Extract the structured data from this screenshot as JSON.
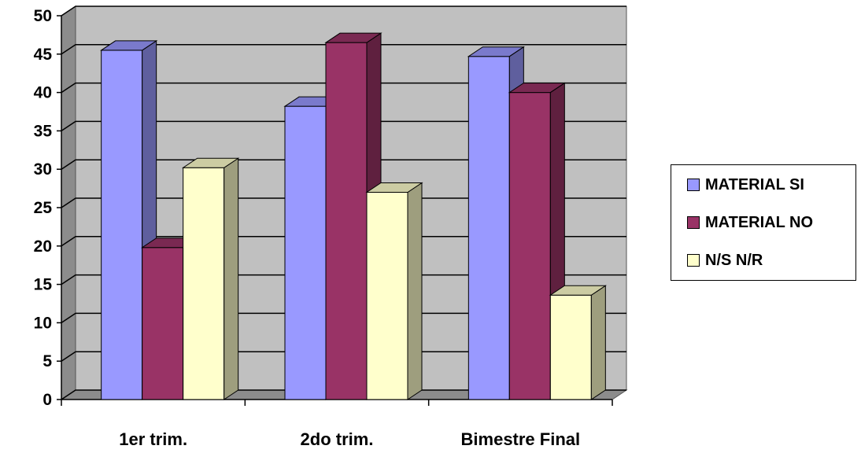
{
  "chart_data": {
    "type": "bar",
    "title": "",
    "xlabel": "",
    "ylabel": "",
    "ylim": [
      0,
      50
    ],
    "yticks": [
      "0",
      "5",
      "10",
      "15",
      "20",
      "25",
      "30",
      "35",
      "40",
      "45",
      "50"
    ],
    "categories": [
      "1er trim.",
      "2do trim.",
      "Bimestre Final"
    ],
    "series": [
      {
        "name": "MATERIAL SI",
        "values": [
          45.5,
          38.2,
          44.7
        ],
        "color": "#9999ff"
      },
      {
        "name": "MATERIAL NO",
        "values": [
          19.8,
          46.5,
          40
        ],
        "color": "#993366"
      },
      {
        "name": "N/S N/R",
        "values": [
          30.2,
          27,
          13.6
        ],
        "color": "#ffffcc"
      }
    ],
    "grid": true,
    "legend_position": "right",
    "style": "3d-clustered-column"
  }
}
